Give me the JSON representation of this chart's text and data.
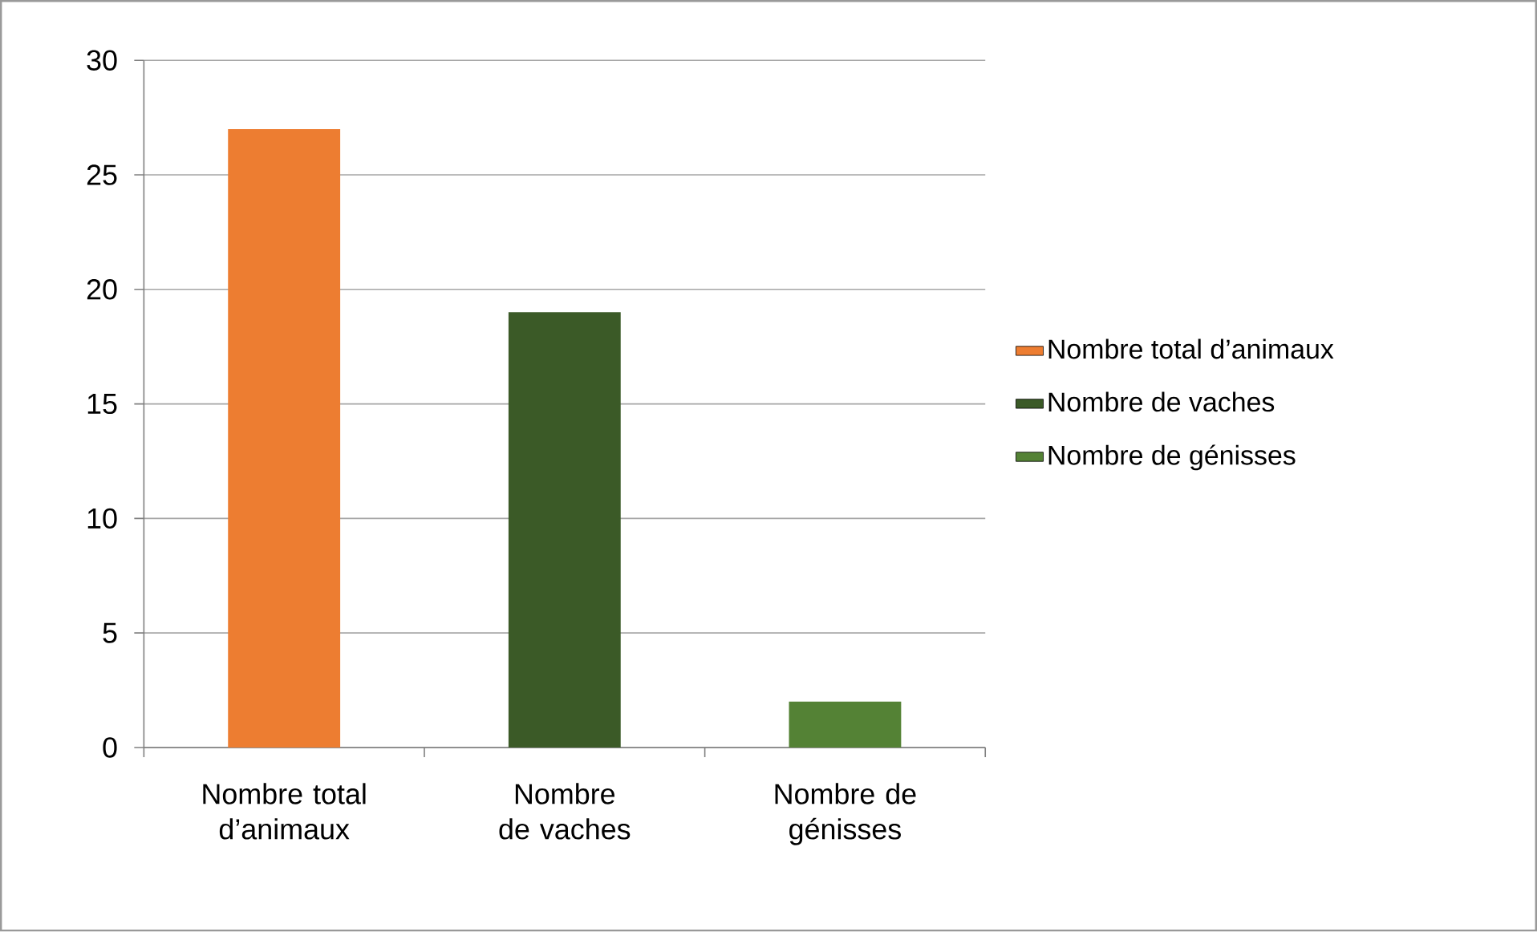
{
  "chart_data": {
    "type": "bar",
    "categories": [
      "Nombre total d’animaux",
      "Nombre de vaches",
      "Nombre de génisses"
    ],
    "series": [
      {
        "name": "Nombre total d’animaux",
        "color": "#ed7d31",
        "values": [
          27,
          null,
          null
        ]
      },
      {
        "name": "Nombre de vaches",
        "color": "#3b5a27",
        "values": [
          null,
          19,
          null
        ]
      },
      {
        "name": "Nombre de génisses",
        "color": "#548235",
        "values": [
          null,
          null,
          2
        ]
      }
    ],
    "ylim": [
      0,
      30
    ],
    "yticks": [
      0,
      5,
      10,
      15,
      20,
      25,
      30
    ],
    "grid": "y",
    "legend": "right"
  }
}
